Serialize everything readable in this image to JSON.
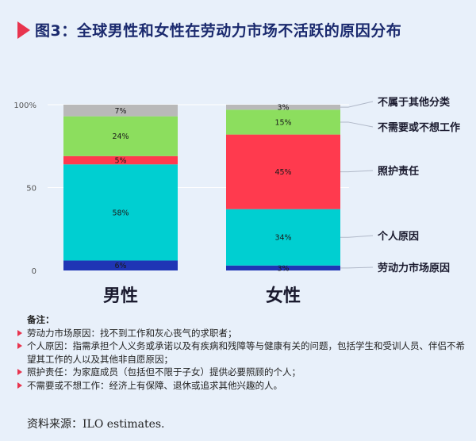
{
  "header": {
    "title": "图3：全球男性和女性在劳动力市场不活跃的原因分布"
  },
  "chart_data": {
    "type": "bar",
    "stacked": true,
    "categories": [
      "男性",
      "女性"
    ],
    "yticks": [
      "0",
      "50",
      "100%"
    ],
    "ylim": [
      0,
      100
    ],
    "grid": true,
    "series": [
      {
        "name": "劳动力市场原因",
        "color": "#1f35b5",
        "values": [
          6,
          3
        ],
        "labels": [
          "6%",
          "3%"
        ]
      },
      {
        "name": "个人原因",
        "color": "#00cfd1",
        "values": [
          58,
          34
        ],
        "labels": [
          "58%",
          "34%"
        ]
      },
      {
        "name": "照护责任",
        "color": "#ff3a4e",
        "values": [
          5,
          45
        ],
        "labels": [
          "5%",
          "45%"
        ]
      },
      {
        "name": "不需要或不想工作",
        "color": "#8cde5e",
        "values": [
          24,
          15
        ],
        "labels": [
          "24%",
          "15%"
        ]
      },
      {
        "name": "不属于其他分类",
        "color": "#b9b9b9",
        "values": [
          7,
          3
        ],
        "labels": [
          "7%",
          "3%"
        ]
      }
    ]
  },
  "notes": {
    "title": "备注：",
    "items": [
      "劳动力市场原因：找不到工作和灰心丧气的求职者；",
      "个人原因：指需承担个人义务或承诺以及有疾病和残障等与健康有关的问题，包括学生和受训人员、伴侣不希望其工作的人以及其他非自愿原因；",
      "照护责任：为家庭成员（包括但不限于子女）提供必要照顾的个人；",
      "不需要或不想工作：经济上有保障、退休或追求其他兴趣的人。"
    ]
  },
  "source": "资料来源：ILO estimates."
}
